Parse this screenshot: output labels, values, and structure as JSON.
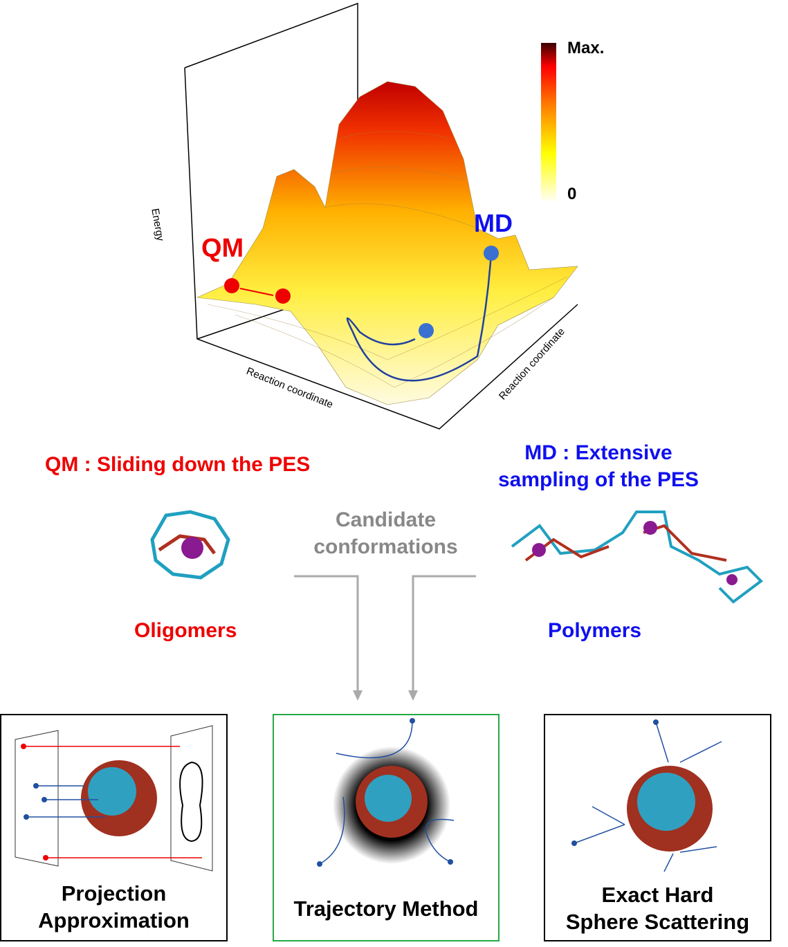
{
  "pes_plot": {
    "axis_z_label": "Energy",
    "axis_x_label": "Reaction coordinate",
    "axis_y_label": "Reaction coordinate",
    "colorbar": {
      "max_label": "Max.",
      "min_label": "0",
      "colors": [
        "#fffff0",
        "#ffff00",
        "#ff8000",
        "#ff0000",
        "#3a0000"
      ]
    },
    "qm_label": "QM",
    "md_label": "MD",
    "qm_color": "#ff0000",
    "md_color": "#0000ff"
  },
  "qm_heading": "QM : Sliding down the PES",
  "md_heading_line1": "MD : Extensive",
  "md_heading_line2": "sampling of the PES",
  "candidate_line1": "Candidate",
  "candidate_line2": "conformations",
  "oligomers_label": "Oligomers",
  "polymers_label": "Polymers",
  "methods": [
    {
      "line1": "Projection",
      "line2": "Approximation",
      "border": "#000000"
    },
    {
      "line1": "Trajectory Method",
      "border": "#22aa44"
    },
    {
      "line1": "Exact Hard",
      "line2": "Sphere Scattering",
      "border": "#000000"
    }
  ]
}
